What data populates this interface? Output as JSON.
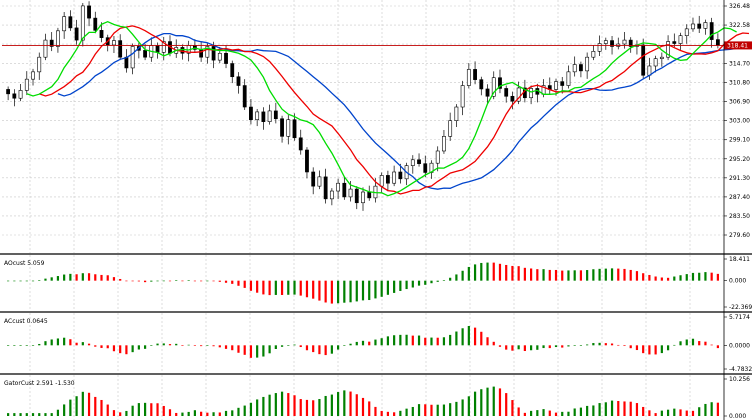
{
  "chart_data": {
    "type": "candlestick",
    "main": {
      "y_ticks": [
        "326.48",
        "322.58",
        "318.68",
        "314.70",
        "310.80",
        "306.90",
        "303.00",
        "299.10",
        "295.20",
        "291.30",
        "287.40",
        "283.50",
        "279.60"
      ],
      "current_price": "318.41",
      "ylim": [
        277.5,
        329.0
      ],
      "closes": [
        308.5,
        307.6,
        309.2,
        311.5,
        313.0,
        316.0,
        319.5,
        318.2,
        321.4,
        324.3,
        322.0,
        319.5,
        326.5,
        324.0,
        321.5,
        320.0,
        318.5,
        319.4,
        316.0,
        313.8,
        318.2,
        317.4,
        316.0,
        318.4,
        317.0,
        319.2,
        316.8,
        318.0,
        316.8,
        318.4,
        317.6,
        316.0,
        318.2,
        315.4,
        316.8,
        314.7,
        312.0,
        310.2,
        305.8,
        303.2,
        304.8,
        302.8,
        305.0,
        303.4,
        299.8,
        303.2,
        299.5,
        297.0,
        292.5,
        289.6,
        291.5,
        287.0,
        288.6,
        290.2,
        287.4,
        289.0,
        286.2,
        288.4,
        287.2,
        289.6,
        291.8,
        290.2,
        292.5,
        291.1,
        293.8,
        295.0,
        294.2,
        292.4,
        294.3,
        296.8,
        299.8,
        303.0,
        305.8,
        310.2,
        313.5,
        311.4,
        309.5,
        308.0,
        311.8,
        309.6,
        308.0,
        307.0,
        309.7,
        307.7,
        309.6,
        308.4,
        310.2,
        309.4,
        311.0,
        310.2,
        313.0,
        314.5,
        313.2,
        316.0,
        317.2,
        318.8,
        319.4,
        318.2,
        318.7,
        319.5,
        318.2,
        318.5,
        312.3,
        314.2,
        315.7,
        316.0,
        319.2,
        318.8,
        320.4,
        321.8,
        322.8,
        321.9,
        323.1,
        319.6,
        318.4
      ],
      "ma_green": {
        "period": 5,
        "shift": 3,
        "color": "#00dd00"
      },
      "ma_red": {
        "period": 8,
        "shift": 5,
        "color": "#ee0000"
      },
      "ma_blue": {
        "period": 13,
        "shift": 8,
        "color": "#0044cc"
      }
    },
    "ao": {
      "label": "AOcust 5.059",
      "y_ticks": [
        "18.411",
        "0.000",
        "-22.369"
      ],
      "ylim": [
        -22.369,
        18.411
      ]
    },
    "ac": {
      "label": "ACcust 0.0645",
      "y_ticks": [
        "5.7174",
        "0.0000",
        "-4.7832"
      ],
      "ylim": [
        -4.7832,
        5.7174
      ]
    },
    "gator": {
      "label": "GatorCust 2.591 -1.530",
      "y_ticks": [
        "10.256",
        "0.000"
      ],
      "ylim": [
        0,
        10.256
      ]
    },
    "colors": {
      "up": "#008000",
      "down": "#ff0000",
      "candle_body": "#000000",
      "price_line": "#c00000",
      "grid": "#c8c8c8",
      "axis": "#000000"
    }
  }
}
